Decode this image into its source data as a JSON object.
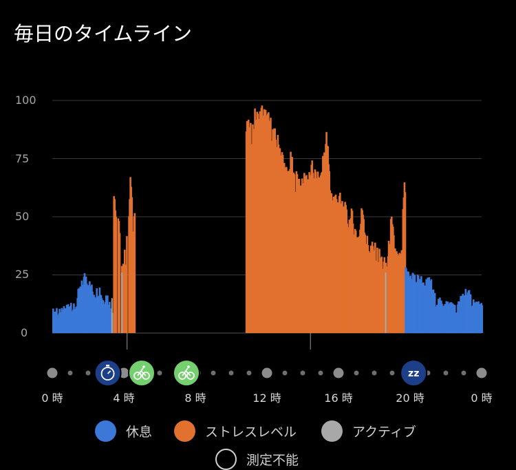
{
  "title": "毎日のタイムライン",
  "colors": {
    "rest": "#3b78d8",
    "stress": "#e2712f",
    "active": "#a8a8a8",
    "grid": "#3a3a3a"
  },
  "chart_data": {
    "type": "bar",
    "title": "毎日のタイムライン",
    "ylim": [
      0,
      100
    ],
    "yticks": [
      "100",
      "75",
      "50",
      "25",
      "0"
    ],
    "xticks": [
      "0 時",
      "4 時",
      "8 時",
      "12 時",
      "16 時",
      "20 時",
      "0 時"
    ],
    "x_unit": "hour",
    "grid": true,
    "segments": [
      {
        "from": 0.0,
        "to": 3.4,
        "level": "rest"
      },
      {
        "from": 3.4,
        "to": 4.6,
        "level": "stress"
      },
      {
        "from": 10.8,
        "to": 19.7,
        "level": "stress"
      },
      {
        "from": 19.7,
        "to": 24.0,
        "level": "rest"
      }
    ],
    "series": [
      {
        "name": "休息",
        "points": [
          [
            0.0,
            8
          ],
          [
            0.2,
            10
          ],
          [
            0.4,
            7
          ],
          [
            0.6,
            9
          ],
          [
            0.8,
            11
          ],
          [
            1.0,
            13
          ],
          [
            1.2,
            9
          ],
          [
            1.4,
            16
          ],
          [
            1.6,
            20
          ],
          [
            1.8,
            25
          ],
          [
            2.0,
            21
          ],
          [
            2.2,
            18
          ],
          [
            2.4,
            17
          ],
          [
            2.6,
            19
          ],
          [
            2.8,
            14
          ],
          [
            3.0,
            16
          ],
          [
            3.2,
            11
          ],
          [
            3.4,
            9
          ],
          [
            19.7,
            26
          ],
          [
            19.9,
            24
          ],
          [
            20.1,
            25
          ],
          [
            20.3,
            22
          ],
          [
            20.5,
            24
          ],
          [
            20.7,
            20
          ],
          [
            20.9,
            21
          ],
          [
            21.1,
            22
          ],
          [
            21.3,
            15
          ],
          [
            21.5,
            13
          ],
          [
            21.7,
            12
          ],
          [
            21.9,
            14
          ],
          [
            22.1,
            11
          ],
          [
            22.3,
            13
          ],
          [
            22.5,
            9
          ],
          [
            22.7,
            12
          ],
          [
            22.9,
            16
          ],
          [
            23.1,
            18
          ],
          [
            23.3,
            15
          ],
          [
            23.5,
            13
          ],
          [
            23.7,
            12
          ],
          [
            23.9,
            10
          ]
        ]
      },
      {
        "name": "ストレスレベル",
        "points": [
          [
            3.45,
            59
          ],
          [
            3.55,
            40
          ],
          [
            3.65,
            50
          ],
          [
            3.75,
            36
          ],
          [
            3.85,
            32
          ],
          [
            3.95,
            29
          ],
          [
            4.05,
            34
          ],
          [
            4.15,
            45
          ],
          [
            4.25,
            50
          ],
          [
            4.35,
            68
          ],
          [
            4.45,
            46
          ],
          [
            4.55,
            52
          ],
          [
            10.9,
            87
          ],
          [
            11.1,
            85
          ],
          [
            11.3,
            93
          ],
          [
            11.5,
            91
          ],
          [
            11.7,
            95
          ],
          [
            11.9,
            92
          ],
          [
            12.1,
            90
          ],
          [
            12.3,
            85
          ],
          [
            12.5,
            82
          ],
          [
            12.7,
            79
          ],
          [
            12.9,
            72
          ],
          [
            13.1,
            66
          ],
          [
            13.3,
            74
          ],
          [
            13.5,
            64
          ],
          [
            13.7,
            67
          ],
          [
            13.9,
            61
          ],
          [
            14.1,
            68
          ],
          [
            14.3,
            65
          ],
          [
            14.5,
            70
          ],
          [
            14.7,
            66
          ],
          [
            14.9,
            63
          ],
          [
            15.1,
            75
          ],
          [
            15.3,
            84
          ],
          [
            15.5,
            60
          ],
          [
            15.7,
            57
          ],
          [
            15.9,
            58
          ],
          [
            16.1,
            55
          ],
          [
            16.3,
            52
          ],
          [
            16.5,
            47
          ],
          [
            16.7,
            49
          ],
          [
            16.9,
            43
          ],
          [
            17.1,
            40
          ],
          [
            17.3,
            55
          ],
          [
            17.5,
            39
          ],
          [
            17.7,
            36
          ],
          [
            17.9,
            35
          ],
          [
            18.1,
            33
          ],
          [
            18.3,
            32
          ],
          [
            18.5,
            28
          ],
          [
            18.7,
            30
          ],
          [
            18.9,
            47
          ],
          [
            19.1,
            36
          ],
          [
            19.3,
            30
          ],
          [
            19.5,
            32
          ],
          [
            19.6,
            60
          ]
        ]
      },
      {
        "name": "アクティブ",
        "points": [
          [
            3.3,
            15
          ],
          [
            3.85,
            26
          ],
          [
            18.6,
            26
          ]
        ]
      }
    ],
    "events": [
      {
        "hour": 3.1,
        "icon": "timer-icon",
        "color": "#1d3f8a"
      },
      {
        "hour": 5.0,
        "icon": "bicycle-icon",
        "color": "#74cf6f"
      },
      {
        "hour": 7.5,
        "icon": "bicycle-icon",
        "color": "#74cf6f"
      },
      {
        "hour": 20.2,
        "icon": "sleep-icon",
        "color": "#1d3f8a",
        "text": "zz"
      }
    ],
    "legend": {
      "position": "bottom",
      "items": [
        "休息",
        "ストレスレベル",
        "アクティブ",
        "測定不能"
      ]
    }
  }
}
